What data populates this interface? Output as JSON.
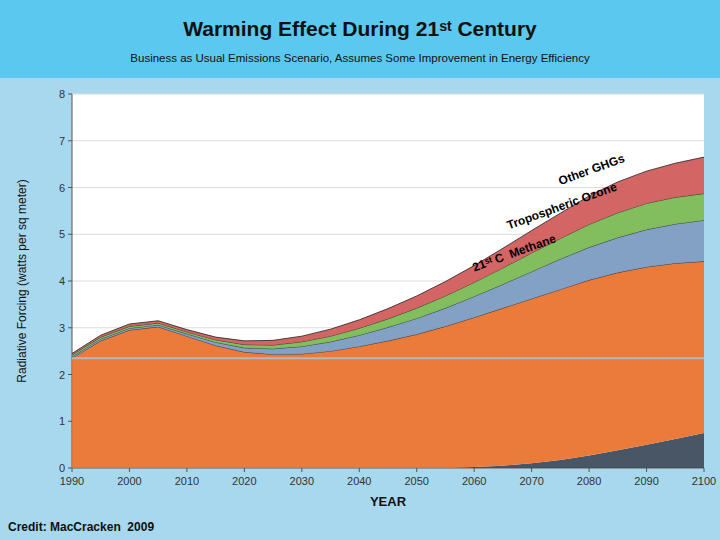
{
  "chart_data": {
    "type": "area",
    "title": "Warming Effect During 21ˢᵗ Century",
    "subtitle": "Business as Usual Emissions Scenario, Assumes Some Improvement in Energy Efficiency",
    "x_label": "YEAR",
    "y_label": "Radiative Forcing (watts per sq meter)",
    "credit": "Credit: MacCracken  2009",
    "background": "#a8d8ee",
    "header_background": "#5bc8f0",
    "plot_background": "#ffffff",
    "x": [
      1990,
      1995,
      2000,
      2005,
      2010,
      2015,
      2020,
      2025,
      2030,
      2035,
      2040,
      2045,
      2050,
      2055,
      2060,
      2065,
      2070,
      2075,
      2080,
      2085,
      2090,
      2095,
      2100
    ],
    "series": [
      {
        "type": "area",
        "color": "#384858",
        "values": [
          0.0,
          0.0,
          0.0,
          0.0,
          0.0,
          0.0,
          0.0,
          0.0,
          0.0,
          0.0,
          0.0,
          0.0,
          0.0,
          0.0,
          0.02,
          0.05,
          0.1,
          0.17,
          0.27,
          0.38,
          0.5,
          0.62,
          0.75
        ]
      },
      {
        "type": "area",
        "color": "#e8702a",
        "values": [
          2.35,
          2.72,
          2.95,
          3.02,
          2.82,
          2.62,
          2.48,
          2.43,
          2.44,
          2.5,
          2.6,
          2.72,
          2.86,
          3.03,
          3.22,
          3.42,
          3.62,
          3.82,
          4.02,
          4.18,
          4.3,
          4.38,
          4.42
        ]
      },
      {
        "type": "area",
        "color": "#7898c0",
        "values": [
          2.38,
          2.76,
          2.99,
          3.06,
          2.87,
          2.69,
          2.57,
          2.55,
          2.6,
          2.7,
          2.84,
          3.01,
          3.2,
          3.42,
          3.67,
          3.93,
          4.2,
          4.47,
          4.72,
          4.93,
          5.1,
          5.22,
          5.3
        ]
      },
      {
        "type": "area",
        "color": "#78b850",
        "values": [
          2.42,
          2.8,
          3.03,
          3.1,
          2.91,
          2.74,
          2.64,
          2.63,
          2.7,
          2.82,
          2.99,
          3.19,
          3.42,
          3.68,
          3.97,
          4.28,
          4.6,
          4.91,
          5.21,
          5.46,
          5.66,
          5.79,
          5.87
        ]
      },
      {
        "type": "area",
        "color": "#d05858",
        "values": [
          2.45,
          2.84,
          3.08,
          3.15,
          2.96,
          2.8,
          2.72,
          2.73,
          2.82,
          2.97,
          3.17,
          3.41,
          3.68,
          3.99,
          4.33,
          4.7,
          5.08,
          5.45,
          5.82,
          6.12,
          6.35,
          6.52,
          6.65
        ]
      },
      {
        "type": "line",
        "color": "#b0b8c0",
        "values": [
          2.35,
          2.35,
          2.35,
          2.35,
          2.35,
          2.35,
          2.35,
          2.35,
          2.35,
          2.35,
          2.35,
          2.35,
          2.35,
          2.35,
          2.35,
          2.35,
          2.35,
          2.35,
          2.35,
          2.35,
          2.35,
          2.35,
          2.35
        ]
      }
    ],
    "annotations": [
      {
        "text": "Other GHGs",
        "x": 2075,
        "y": 6.05
      },
      {
        "text": "Tropospheric Ozone",
        "x": 2066,
        "y": 5.1
      },
      {
        "text": "21ˢᵗ C  Methane",
        "x": 2060,
        "y": 4.2
      }
    ],
    "xlim": [
      1990,
      2100
    ],
    "ylim": [
      0,
      8
    ],
    "xticks": [
      1990,
      2000,
      2010,
      2020,
      2030,
      2040,
      2050,
      2060,
      2070,
      2080,
      2090,
      2100
    ],
    "yticks": [
      0,
      1,
      2,
      3,
      4,
      5,
      6,
      7,
      8
    ],
    "grid": true
  }
}
